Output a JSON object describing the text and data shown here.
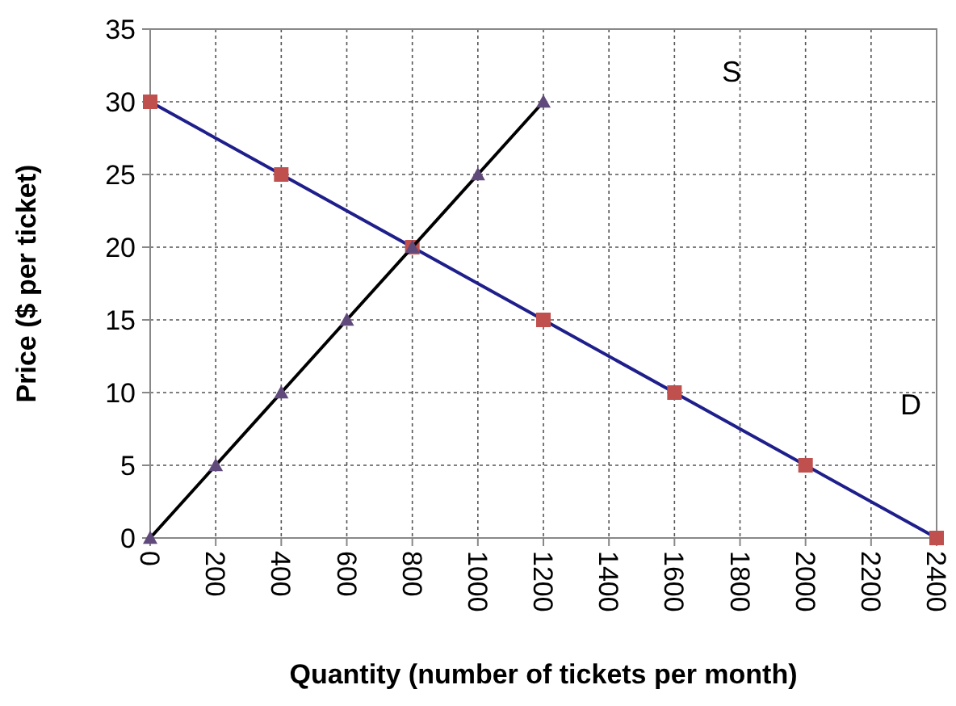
{
  "chart_data": {
    "type": "line",
    "xlabel": "Quantity (number of tickets per month)",
    "ylabel": "Price ($ per ticket)",
    "xlim": [
      0,
      2400
    ],
    "xticks": [
      0,
      200,
      400,
      600,
      800,
      1000,
      1200,
      1400,
      1600,
      1800,
      2000,
      2200,
      2400
    ],
    "ylim": [
      0,
      35
    ],
    "yticks": [
      0,
      5,
      10,
      15,
      20,
      25,
      30,
      35
    ],
    "grid": true,
    "line_style": "solid",
    "series": [
      {
        "color": "#1f1f8c",
        "marker": "square",
        "colors": [
          "#c0504d",
          "#c0504d",
          "#c0504d",
          "#c0504d",
          "#c0504d",
          "#c0504d",
          "#c0504d"
        ],
        "x": [
          0,
          400,
          800,
          1200,
          1600,
          2000,
          2400
        ],
        "values": [
          30,
          25,
          20,
          15,
          10,
          5,
          0
        ]
      },
      {
        "color": "#000000",
        "marker": "triangle",
        "colors": [
          "#604a7b",
          "#604a7b",
          "#604a7b",
          "#604a7b",
          "#604a7b",
          "#604a7b",
          "#604a7b"
        ],
        "x": [
          0,
          200,
          400,
          600,
          800,
          1000,
          1200
        ],
        "values": [
          0,
          5,
          10,
          15,
          20,
          25,
          30
        ]
      }
    ],
    "annotations": [
      "S",
      "D"
    ]
  }
}
